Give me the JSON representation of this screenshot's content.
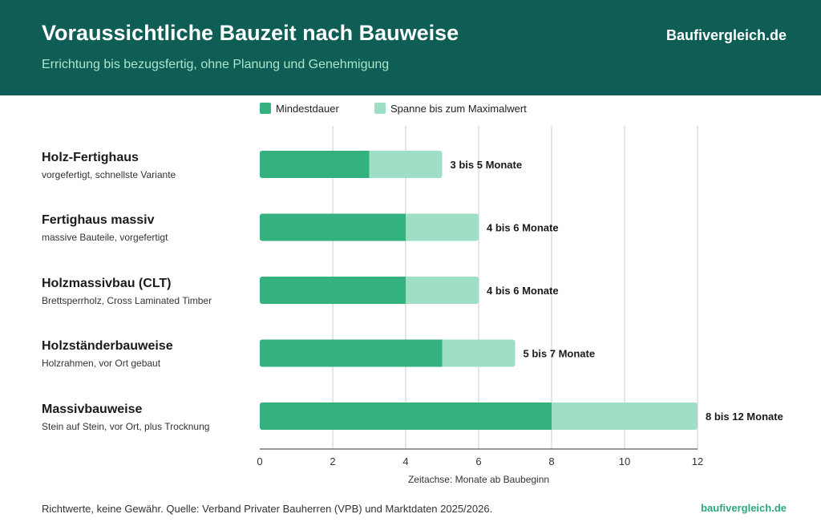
{
  "header": {
    "title": "Voraussichtliche Bauzeit nach Bauweise",
    "subtitle": "Errichtung bis bezugsfertig, ohne Planung und Genehmigung",
    "brand": "Baufivergleich.de"
  },
  "legend": {
    "min_label": "Mindestdauer",
    "range_label": "Spanne bis zum Maximalwert"
  },
  "colors": {
    "header_bg": "#0f5e55",
    "min": "#33b17f",
    "range": "#9fdfc6"
  },
  "chart_data": {
    "type": "bar",
    "orientation": "horizontal",
    "stacked": true,
    "categories": [
      "Holz-Fertighaus",
      "Fertighaus massiv",
      "Holzmassivbau (CLT)",
      "Holzständerbauweise",
      "Massivbauweise"
    ],
    "category_descriptions": [
      "vorgefertigt, schnellste Variante",
      "massive Bauteile, vorgefertigt",
      "Brettsperrholz, Cross Laminated Timber",
      "Holzrahmen, vor Ort gebaut",
      "Stein auf Stein, vor Ort, plus Trocknung"
    ],
    "series": [
      {
        "name": "Mindestdauer",
        "values": [
          3,
          4,
          4,
          5,
          8
        ]
      },
      {
        "name": "Spanne bis zum Maximalwert",
        "values": [
          2,
          2,
          2,
          2,
          4
        ]
      }
    ],
    "max_values": [
      5,
      6,
      6,
      7,
      12
    ],
    "data_labels": [
      "3 bis 5 Monate",
      "4 bis 6 Monate",
      "4 bis 6 Monate",
      "5 bis 7 Monate",
      "8 bis 12 Monate"
    ],
    "xlabel": "Zeitachse: Monate ab Baubeginn",
    "xlim": [
      0,
      12
    ],
    "xticks": [
      0,
      2,
      4,
      6,
      8,
      10,
      12
    ],
    "grid": true,
    "legend_position": "top"
  },
  "footer": {
    "note": "Richtwerte, keine Gewähr. Quelle: Verband Privater Bauherren (VPB) und Marktdaten 2025/2026.",
    "brand": "baufivergleich.de"
  }
}
